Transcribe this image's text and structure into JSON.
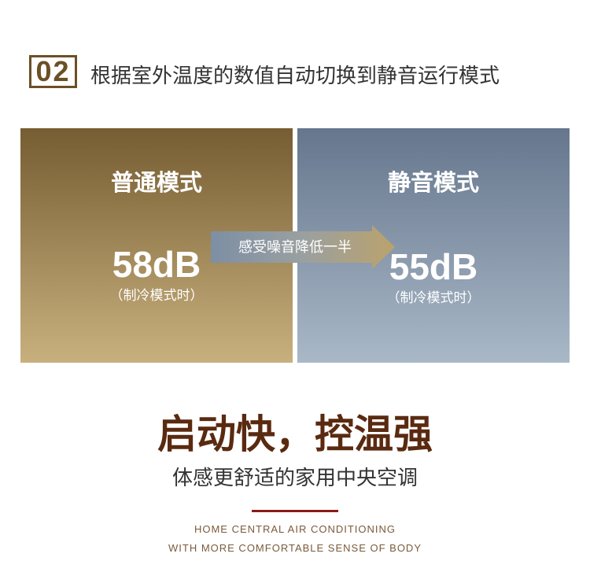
{
  "header": {
    "number": "02",
    "title": "根据室外温度的数值自动切换到静音运行模式"
  },
  "panels": [
    {
      "title": "普通模式",
      "value": "58dB",
      "note": "（制冷模式时）"
    },
    {
      "title": "静音模式",
      "value": "55dB",
      "note": "（制冷模式时）"
    }
  ],
  "arrow": {
    "label": "感受噪音降低一半"
  },
  "headline": "启动快，控温强",
  "subtitle": "体感更舒适的家用中央空调",
  "english": [
    "HOME CENTRAL AIR CONDITIONING",
    "WITH MORE COMFORTABLE SENSE OF BODY"
  ]
}
